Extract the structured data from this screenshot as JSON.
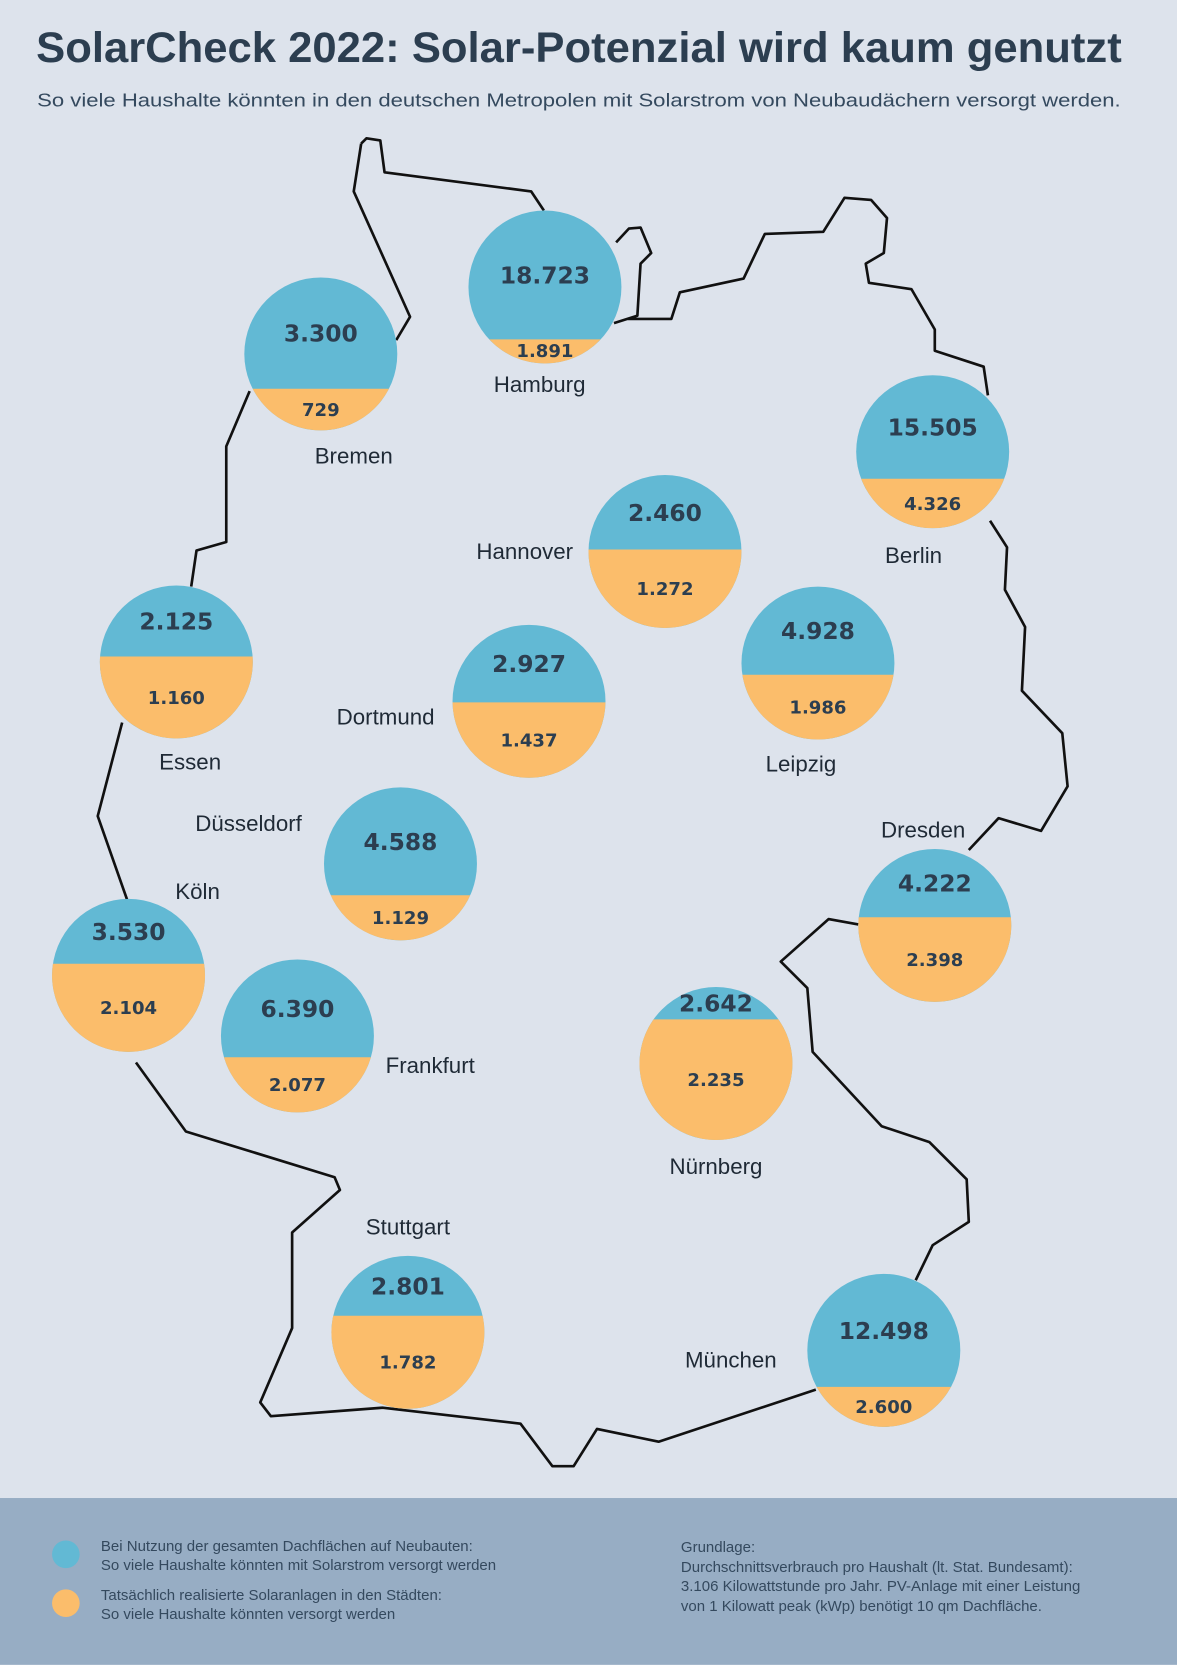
{
  "chart_data": {
    "type": "map",
    "title": "SolarCheck 2022: Solar-Potenzial wird kaum genutzt",
    "subtitle": "So viele Haushalte könnten in den deutschen Metropolen mit Solarstrom von Neubaudächern versorgt werden.",
    "categories": [
      "Hamburg",
      "Bremen",
      "Berlin",
      "Hannover",
      "Essen",
      "Dortmund",
      "Leipzig",
      "Düsseldorf",
      "Köln",
      "Dresden",
      "Frankfurt",
      "Nürnberg",
      "Stuttgart",
      "München"
    ],
    "series": [
      {
        "name": "Bei Nutzung der gesamten Dachflächen auf Neubauten:\nSo viele Haushalte könnten mit Solarstrom versorgt werden",
        "color": "#62b9d4",
        "values": [
          18723,
          3300,
          15505,
          2460,
          2125,
          2927,
          4928,
          4588,
          3530,
          4222,
          6390,
          2642,
          2801,
          12498
        ],
        "value_labels": [
          "18.723",
          "3.300",
          "15.505",
          "2.460",
          "2.125",
          "2.927",
          "4.928",
          "4.588",
          "3.530",
          "4.222",
          "6.390",
          "2.642",
          "2.801",
          "12.498"
        ]
      },
      {
        "name": "Tatsächlich realisierte Solaranlagen in den Städten:\nSo viele Haushalte könnten versorgt werden",
        "color": "#fbbd6b",
        "values": [
          1891,
          729,
          4326,
          1272,
          1160,
          1437,
          1986,
          1129,
          2104,
          2398,
          2077,
          2235,
          1782,
          2600
        ],
        "value_labels": [
          "1.891",
          "729",
          "4.326",
          "1.272",
          "1.160",
          "1.437",
          "1.986",
          "1.129",
          "2.104",
          "2.398",
          "2.077",
          "2.235",
          "1.782",
          "2.600"
        ]
      }
    ],
    "note": [
      "Grundlage:",
      "Durchschnittsverbrauch pro Haushalt (lt. Stat. Bundesamt):",
      "3.106 Kilowattstunde pro Jahr. PV-Anlage mit einer Leistung",
      "von 1 Kilowatt peak (kWp) benötigt 10 qm Dachfläche."
    ]
  }
}
